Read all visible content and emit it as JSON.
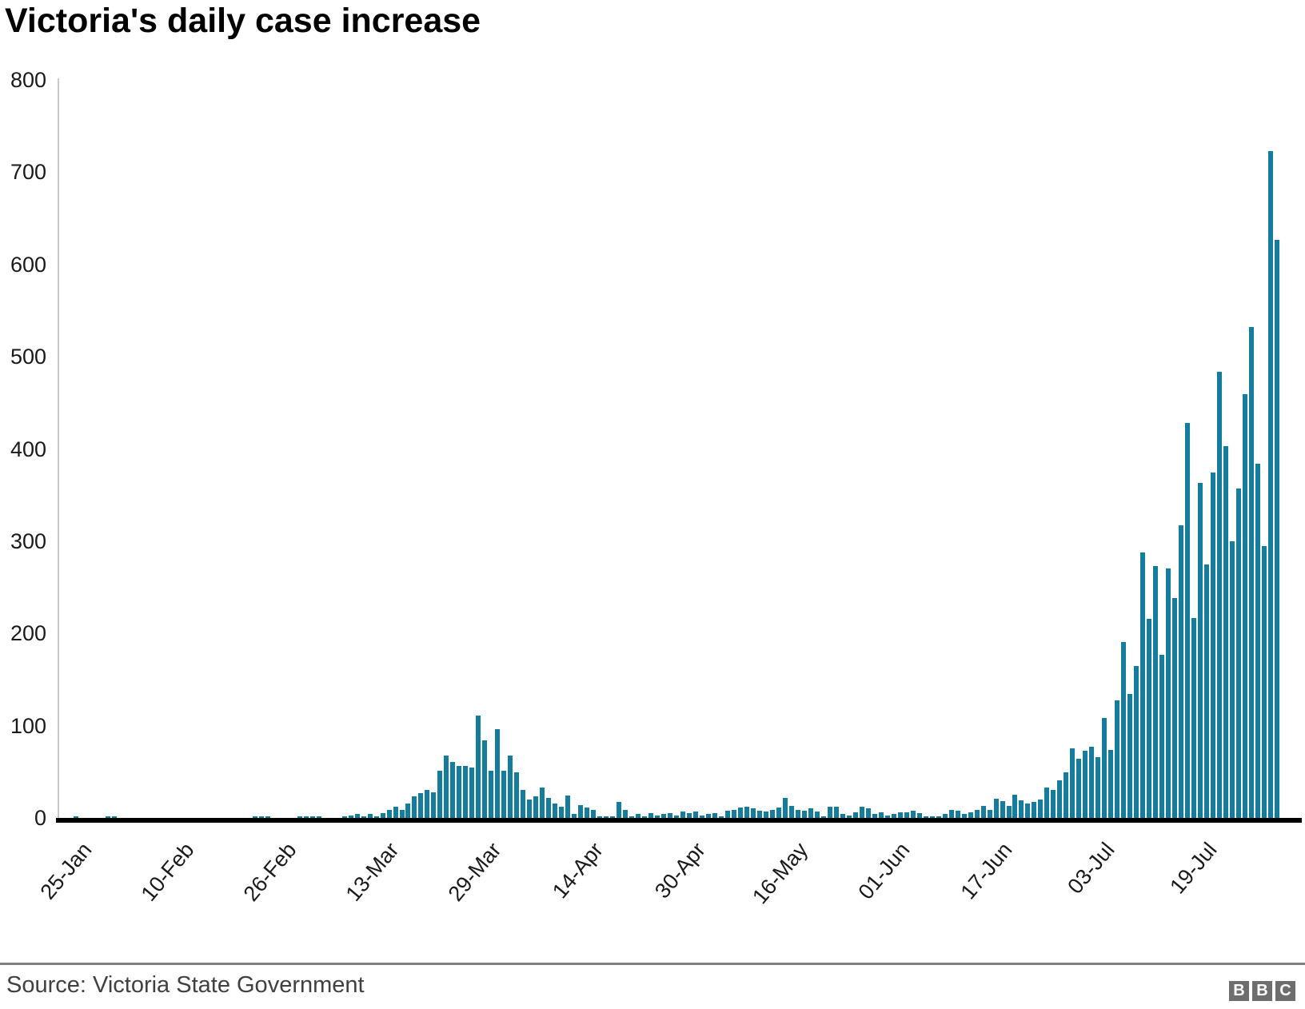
{
  "chart": {
    "title": "Victoria's daily case increase"
  },
  "chart_data": {
    "type": "bar",
    "title": "Victoria's daily case increase",
    "xlabel": "",
    "ylabel": "",
    "ylim": [
      0,
      800
    ],
    "y_ticks": [
      0,
      100,
      200,
      300,
      400,
      500,
      600,
      700,
      800
    ],
    "grid": "off",
    "legend": "none",
    "bar_color": "#147d9e",
    "x_tick_labels": [
      "25-Jan",
      "10-Feb",
      "26-Feb",
      "13-Mar",
      "29-Mar",
      "14-Apr",
      "30-Apr",
      "16-May",
      "01-Jun",
      "17-Jun",
      "03-Jul",
      "19-Jul"
    ],
    "x_tick_indices": [
      0,
      16,
      32,
      48,
      64,
      80,
      96,
      112,
      128,
      144,
      160,
      176
    ],
    "dates": [
      "25-Jan",
      "26-Jan",
      "27-Jan",
      "28-Jan",
      "29-Jan",
      "30-Jan",
      "31-Jan",
      "01-Feb",
      "02-Feb",
      "03-Feb",
      "04-Feb",
      "05-Feb",
      "06-Feb",
      "07-Feb",
      "08-Feb",
      "09-Feb",
      "10-Feb",
      "11-Feb",
      "12-Feb",
      "13-Feb",
      "14-Feb",
      "15-Feb",
      "16-Feb",
      "17-Feb",
      "18-Feb",
      "19-Feb",
      "20-Feb",
      "21-Feb",
      "22-Feb",
      "23-Feb",
      "24-Feb",
      "25-Feb",
      "26-Feb",
      "27-Feb",
      "28-Feb",
      "29-Feb",
      "01-Mar",
      "02-Mar",
      "03-Mar",
      "04-Mar",
      "05-Mar",
      "06-Mar",
      "07-Mar",
      "08-Mar",
      "09-Mar",
      "10-Mar",
      "11-Mar",
      "12-Mar",
      "13-Mar",
      "14-Mar",
      "15-Mar",
      "16-Mar",
      "17-Mar",
      "18-Mar",
      "19-Mar",
      "20-Mar",
      "21-Mar",
      "22-Mar",
      "23-Mar",
      "24-Mar",
      "25-Mar",
      "26-Mar",
      "27-Mar",
      "28-Mar",
      "29-Mar",
      "30-Mar",
      "31-Mar",
      "01-Apr",
      "02-Apr",
      "03-Apr",
      "04-Apr",
      "05-Apr",
      "06-Apr",
      "07-Apr",
      "08-Apr",
      "09-Apr",
      "10-Apr",
      "11-Apr",
      "12-Apr",
      "13-Apr",
      "14-Apr",
      "15-Apr",
      "16-Apr",
      "17-Apr",
      "18-Apr",
      "19-Apr",
      "20-Apr",
      "21-Apr",
      "22-Apr",
      "23-Apr",
      "24-Apr",
      "25-Apr",
      "26-Apr",
      "27-Apr",
      "28-Apr",
      "29-Apr",
      "30-Apr",
      "01-May",
      "02-May",
      "03-May",
      "04-May",
      "05-May",
      "06-May",
      "07-May",
      "08-May",
      "09-May",
      "10-May",
      "11-May",
      "12-May",
      "13-May",
      "14-May",
      "15-May",
      "16-May",
      "17-May",
      "18-May",
      "19-May",
      "20-May",
      "21-May",
      "22-May",
      "23-May",
      "24-May",
      "25-May",
      "26-May",
      "27-May",
      "28-May",
      "29-May",
      "30-May",
      "31-May",
      "01-Jun",
      "02-Jun",
      "03-Jun",
      "04-Jun",
      "05-Jun",
      "06-Jun",
      "07-Jun",
      "08-Jun",
      "09-Jun",
      "10-Jun",
      "11-Jun",
      "12-Jun",
      "13-Jun",
      "14-Jun",
      "15-Jun",
      "16-Jun",
      "17-Jun",
      "18-Jun",
      "19-Jun",
      "20-Jun",
      "21-Jun",
      "22-Jun",
      "23-Jun",
      "24-Jun",
      "25-Jun",
      "26-Jun",
      "27-Jun",
      "28-Jun",
      "29-Jun",
      "30-Jun",
      "01-Jul",
      "02-Jul",
      "03-Jul",
      "04-Jul",
      "05-Jul",
      "06-Jul",
      "07-Jul",
      "08-Jul",
      "09-Jul",
      "10-Jul",
      "11-Jul",
      "12-Jul",
      "13-Jul",
      "14-Jul",
      "15-Jul",
      "16-Jul",
      "17-Jul",
      "18-Jul",
      "19-Jul",
      "20-Jul",
      "21-Jul",
      "22-Jul",
      "23-Jul",
      "24-Jul",
      "25-Jul",
      "26-Jul",
      "27-Jul",
      "28-Jul",
      "29-Jul",
      "30-Jul",
      "31-Jul"
    ],
    "values": [
      1,
      0,
      0,
      0,
      0,
      2,
      1,
      0,
      0,
      0,
      0,
      0,
      0,
      0,
      0,
      0,
      0,
      0,
      0,
      0,
      0,
      0,
      0,
      0,
      0,
      0,
      0,
      0,
      1,
      1,
      1,
      0,
      0,
      0,
      0,
      1,
      1,
      1,
      1,
      0,
      0,
      0,
      2,
      3,
      4,
      2,
      4,
      2,
      5,
      9,
      12,
      9,
      16,
      23,
      27,
      30,
      28,
      51,
      68,
      61,
      56,
      56,
      55,
      111,
      84,
      51,
      96,
      51,
      68,
      49,
      30,
      20,
      23,
      33,
      22,
      16,
      12,
      24,
      4,
      14,
      11,
      9,
      2,
      1,
      2,
      17,
      9,
      2,
      4,
      2,
      5,
      3,
      4,
      5,
      3,
      7,
      5,
      7,
      3,
      4,
      5,
      2,
      8,
      9,
      11,
      12,
      10,
      8,
      7,
      9,
      11,
      22,
      13,
      9,
      8,
      10,
      7,
      2,
      12,
      12,
      4,
      3,
      6,
      12,
      10,
      4,
      6,
      3,
      4,
      6,
      6,
      8,
      5,
      1,
      2,
      2,
      4,
      9,
      8,
      4,
      6,
      9,
      13,
      9,
      21,
      18,
      13,
      25,
      19,
      16,
      17,
      20,
      33,
      30,
      41,
      49,
      75,
      64,
      73,
      77,
      66,
      108,
      74,
      127,
      191,
      134,
      165,
      288,
      216,
      273,
      177,
      270,
      238,
      317,
      428,
      217,
      363,
      275,
      374,
      484,
      403,
      300,
      357,
      459,
      532,
      384,
      295,
      723,
      627
    ]
  },
  "footer": {
    "source": "Source: Victoria State Government",
    "logo_letters": [
      "B",
      "B",
      "C"
    ]
  },
  "colors": {
    "bar": "#147d9e",
    "title_text": "#000000",
    "axis_text": "#1a1a1a",
    "baseline": "#000000",
    "y_axis_line": "#c8c8c8",
    "divider": "#808080",
    "source_text": "#404040",
    "logo_square": "#6e6e6e",
    "logo_letter": "#ffffff"
  }
}
